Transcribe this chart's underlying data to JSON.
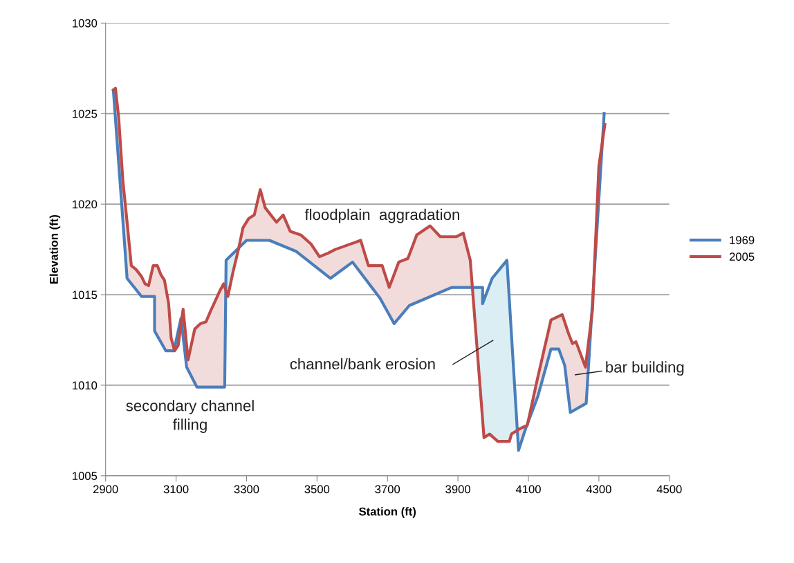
{
  "chart_data": {
    "type": "line",
    "xlabel": "Station (ft)",
    "ylabel": "Elevation (ft)",
    "xlim": [
      2900,
      4500
    ],
    "xticks": [
      2900,
      3100,
      3300,
      3500,
      3700,
      3900,
      4100,
      4300,
      4500
    ],
    "ylim": [
      1005,
      1030
    ],
    "yticks": [
      1005,
      1010,
      1015,
      1020,
      1025,
      1030
    ],
    "grid": "y",
    "legend": "right",
    "marker": "none",
    "line_style": "solid",
    "series": [
      {
        "name": "1969",
        "color": "#4a7ebb",
        "x": [
          2922,
          2961,
          3002,
          3039,
          3039,
          3071,
          3094,
          3114,
          3130,
          3159,
          3238,
          3242,
          3300,
          3365,
          3440,
          3538,
          3601,
          3679,
          3719,
          3762,
          3882,
          3970,
          3970,
          3997,
          4039,
          4072,
          4092,
          4127,
          4164,
          4186,
          4203,
          4219,
          4264,
          4315
        ],
        "values": [
          1026.3,
          1015.9,
          1014.9,
          1014.9,
          1013.0,
          1011.9,
          1011.9,
          1013.7,
          1011.0,
          1009.9,
          1009.9,
          1016.9,
          1018.0,
          1018.0,
          1017.4,
          1015.9,
          1016.8,
          1014.8,
          1013.4,
          1014.4,
          1015.4,
          1015.4,
          1014.5,
          1015.9,
          1016.9,
          1006.4,
          1007.6,
          1009.4,
          1012.0,
          1012.0,
          1011.1,
          1008.5,
          1009.0,
          1025.0
        ]
      },
      {
        "name": "2005",
        "color": "#be4b48",
        "x": [
          2922,
          2928,
          2937,
          2949,
          2961,
          2973,
          2986,
          3002,
          3012,
          3022,
          3035,
          3047,
          3057,
          3067,
          3079,
          3086,
          3096,
          3106,
          3120,
          3134,
          3153,
          3169,
          3185,
          3198,
          3224,
          3235,
          3247,
          3261,
          3277,
          3290,
          3306,
          3322,
          3339,
          3353,
          3369,
          3385,
          3404,
          3424,
          3454,
          3483,
          3507,
          3532,
          3552,
          3581,
          3624,
          3646,
          3666,
          3685,
          3705,
          3732,
          3758,
          3783,
          3821,
          3850,
          3895,
          3915,
          3935,
          3974,
          3990,
          4013,
          4046,
          4052,
          4076,
          4097,
          4125,
          4164,
          4196,
          4213,
          4225,
          4235,
          4262,
          4282,
          4300,
          4317
        ],
        "values": [
          1026.3,
          1026.4,
          1024.8,
          1021.3,
          1019.0,
          1016.6,
          1016.4,
          1016.0,
          1015.6,
          1015.5,
          1016.6,
          1016.6,
          1016.1,
          1015.8,
          1014.5,
          1012.6,
          1011.9,
          1012.2,
          1014.2,
          1011.4,
          1013.1,
          1013.4,
          1013.5,
          1014.1,
          1015.2,
          1015.6,
          1014.9,
          1016.2,
          1017.5,
          1018.7,
          1019.2,
          1019.4,
          1020.8,
          1019.8,
          1019.4,
          1019.0,
          1019.4,
          1018.5,
          1018.3,
          1017.8,
          1017.1,
          1017.3,
          1017.5,
          1017.7,
          1018.0,
          1016.6,
          1016.6,
          1016.6,
          1015.4,
          1016.8,
          1017.0,
          1018.3,
          1018.8,
          1018.2,
          1018.2,
          1018.4,
          1016.9,
          1007.1,
          1007.3,
          1006.9,
          1006.9,
          1007.3,
          1007.6,
          1007.8,
          1010.3,
          1013.6,
          1013.9,
          1012.9,
          1012.3,
          1012.4,
          1011.0,
          1014.2,
          1022.1,
          1024.4
        ]
      }
    ],
    "annotations": [
      "floodplain  aggradation",
      "secondary channel\nfilling",
      "channel/bank erosion",
      "bar building"
    ]
  }
}
